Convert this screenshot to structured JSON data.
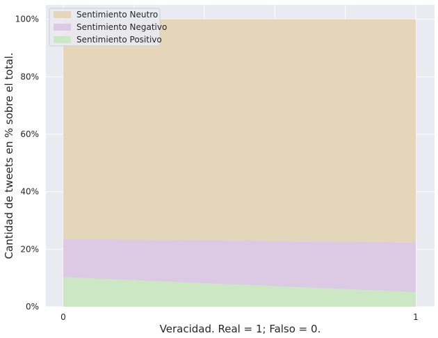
{
  "chart_data": {
    "type": "area",
    "stacked": true,
    "x": [
      0,
      1
    ],
    "xticks": [
      "0",
      "1"
    ],
    "xlabel": "Veracidad. Real = 1; Falso = 0.",
    "ylabel": "Cantidad de tweets en % sobre el total.",
    "yticks": [
      "0%",
      "20%",
      "40%",
      "60%",
      "80%",
      "100%"
    ],
    "ylim": [
      0,
      105
    ],
    "grid": true,
    "legend_position": "top-left",
    "series": [
      {
        "name": "Sentimiento Positivo",
        "values": [
          10.3,
          5.1
        ],
        "color": "#cbe7c3"
      },
      {
        "name": "Sentimiento Negativo",
        "values": [
          13.3,
          17.3
        ],
        "color": "#dcc9e3"
      },
      {
        "name": "Sentimiento Neutro",
        "values": [
          76.4,
          77.6
        ],
        "color": "#e4d7b9"
      }
    ],
    "legend_order": [
      "Sentimiento Neutro",
      "Sentimiento Negativo",
      "Sentimiento Positivo"
    ],
    "colors": {
      "background": "#eaeaf2",
      "grid": "#ffffff",
      "text": "#262626"
    }
  }
}
